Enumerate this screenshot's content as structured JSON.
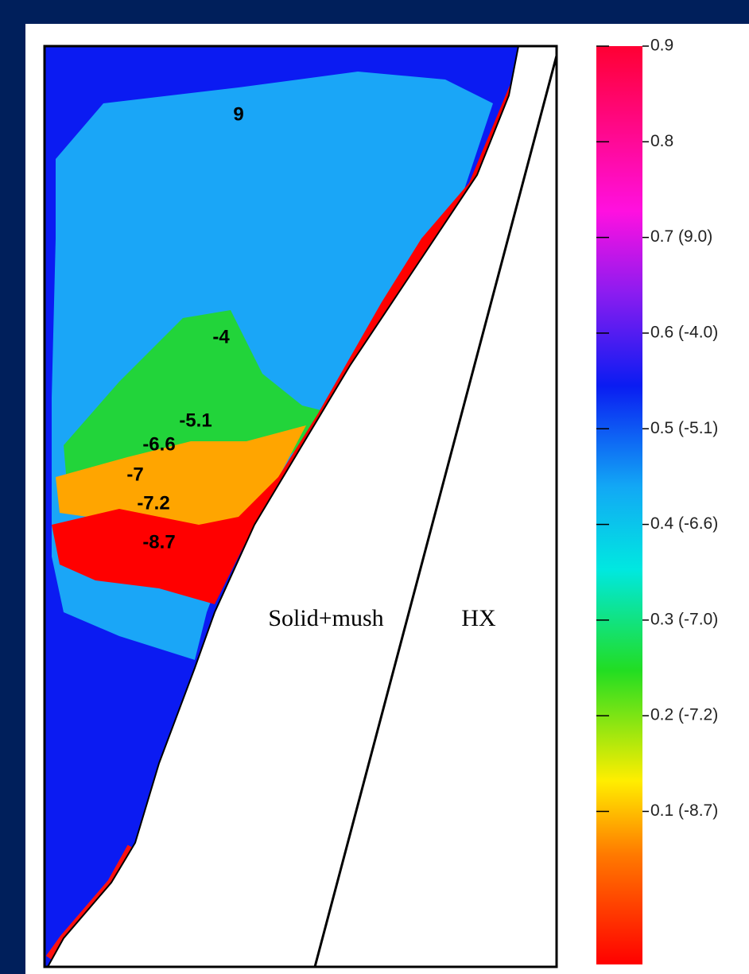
{
  "chart_data": {
    "type": "contour",
    "colorbar": {
      "ylim": [
        -0.06,
        0.9
      ],
      "yticks": [
        0.9,
        0.8,
        {
          "value": 0.7,
          "label": "0.7 (9.0)"
        },
        {
          "value": 0.6,
          "label": "0.6 (-4.0)"
        },
        {
          "value": 0.5,
          "label": "0.5 (-5.1)"
        },
        {
          "value": 0.4,
          "label": "0.4 (-6.6)"
        },
        {
          "value": 0.3,
          "label": "0.3 (-7.0)"
        },
        {
          "value": 0.2,
          "label": "0.2 (-7.2)"
        },
        {
          "value": 0.1,
          "label": "0.1 (-8.7)"
        }
      ]
    },
    "contour_labels": [
      "9",
      "-4",
      "-5.1",
      "-6.6",
      "-7",
      "-7.2",
      "-8.7"
    ],
    "region_labels": [
      "Solid+mush",
      "HX"
    ]
  }
}
